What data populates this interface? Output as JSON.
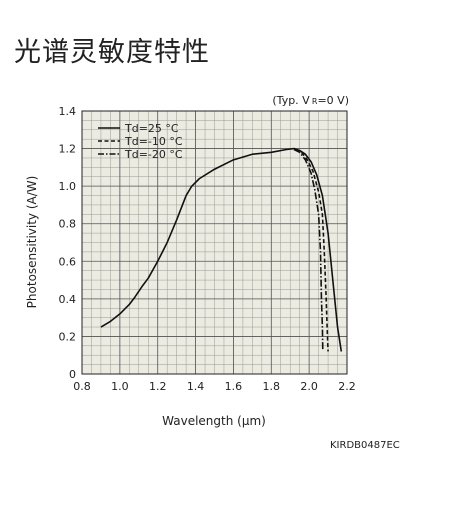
{
  "page": {
    "title": "光谱灵敏度特性",
    "doc_code": "KIRDB0487EC"
  },
  "chart_data": {
    "type": "line",
    "title": "",
    "note": "(Typ. V ",
    "note_sub": "R",
    "note_tail": "=0 V)",
    "xlabel": "Wavelength (µm)",
    "ylabel": "Photosensitivity (A/W)",
    "xlim": [
      0.8,
      2.2
    ],
    "ylim": [
      0,
      1.4
    ],
    "xticks": [
      0.8,
      1.0,
      1.2,
      1.4,
      1.6,
      1.8,
      2.0,
      2.2
    ],
    "yticks": [
      0,
      0.2,
      0.4,
      0.6,
      0.8,
      1.0,
      1.2,
      1.4
    ],
    "xtick_labels": [
      "0.8",
      "1.0",
      "1.2",
      "1.4",
      "1.6",
      "1.8",
      "2.0",
      "2.2"
    ],
    "ytick_labels": [
      "0",
      "0.2",
      "0.4",
      "0.6",
      "0.8",
      "1.0",
      "1.2",
      "1.4"
    ],
    "grid": true,
    "grid_minor_step": 0.05,
    "legend_position": "top-left",
    "series": [
      {
        "name": "Td=25 °C",
        "style": "solid",
        "x": [
          0.9,
          0.95,
          1.0,
          1.05,
          1.08,
          1.1,
          1.12,
          1.15,
          1.2,
          1.25,
          1.3,
          1.35,
          1.38,
          1.42,
          1.5,
          1.6,
          1.7,
          1.8,
          1.88,
          1.92,
          1.95,
          1.98,
          2.01,
          2.04,
          2.07,
          2.1,
          2.13,
          2.15,
          2.17
        ],
        "y": [
          0.25,
          0.28,
          0.32,
          0.37,
          0.41,
          0.44,
          0.47,
          0.51,
          0.6,
          0.7,
          0.82,
          0.95,
          1.0,
          1.04,
          1.09,
          1.14,
          1.17,
          1.18,
          1.195,
          1.2,
          1.19,
          1.17,
          1.13,
          1.06,
          0.95,
          0.75,
          0.45,
          0.25,
          0.12
        ]
      },
      {
        "name": "Td=-10 °C",
        "style": "dash",
        "x": [
          1.93,
          1.96,
          1.99,
          2.02,
          2.05,
          2.07,
          2.08,
          2.09,
          2.095,
          2.1
        ],
        "y": [
          1.195,
          1.18,
          1.14,
          1.08,
          0.97,
          0.85,
          0.65,
          0.4,
          0.25,
          0.12
        ]
      },
      {
        "name": "Td=-20 °C",
        "style": "dashdot",
        "x": [
          1.92,
          1.95,
          1.98,
          2.01,
          2.03,
          2.05,
          2.06,
          2.065,
          2.07,
          2.072
        ],
        "y": [
          1.195,
          1.18,
          1.14,
          1.07,
          0.98,
          0.85,
          0.65,
          0.4,
          0.25,
          0.13
        ]
      }
    ]
  }
}
